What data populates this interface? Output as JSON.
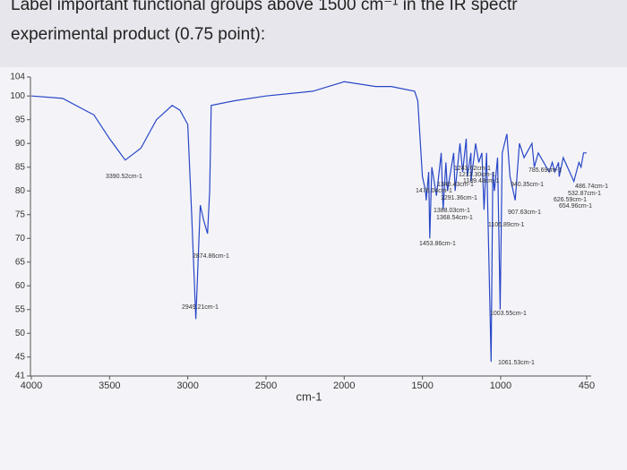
{
  "header": {
    "line1": "Label important functional groups above 1500 cm⁻¹ in the IR spectr",
    "line2": "experimental product (0.75 point):"
  },
  "chart_data": {
    "type": "line",
    "xlabel": "cm-1",
    "color": "#2746c8",
    "xlim": [
      4000,
      450
    ],
    "xticks": [
      4000,
      3500,
      3000,
      2500,
      2000,
      1500,
      1000,
      450
    ],
    "ylim": [
      41,
      104
    ],
    "yticks": [
      41,
      45,
      50,
      55,
      60,
      65,
      70,
      75,
      80,
      85,
      90,
      95,
      100,
      104
    ],
    "x": [
      4000,
      3800,
      3600,
      3500,
      3400,
      3300,
      3200,
      3100,
      3050,
      3000,
      2975,
      2949,
      2940,
      2920,
      2900,
      2874,
      2860,
      2850,
      2700,
      2500,
      2200,
      2100,
      2000,
      1800,
      1700,
      1550,
      1530,
      1500,
      1480,
      1476,
      1460,
      1453,
      1440,
      1410,
      1380,
      1368,
      1350,
      1340,
      1300,
      1291,
      1260,
      1243,
      1220,
      1213,
      1190,
      1189,
      1160,
      1140,
      1120,
      1106,
      1090,
      1061,
      1050,
      1040,
      1020,
      1003,
      990,
      960,
      940,
      907,
      880,
      850,
      800,
      785,
      760,
      690,
      670,
      654,
      630,
      626,
      600,
      532,
      500,
      486,
      470,
      450
    ],
    "values": [
      100,
      99.5,
      96,
      91,
      86.5,
      89,
      95,
      98,
      97,
      94,
      75,
      53,
      60,
      77,
      74,
      71,
      80,
      98,
      99,
      100,
      101,
      102,
      103,
      102,
      102,
      101,
      99,
      83,
      80,
      78,
      84,
      70,
      85,
      79,
      88,
      76,
      86,
      80,
      88,
      80,
      90,
      84,
      91,
      83,
      88,
      82,
      90,
      86,
      88,
      76,
      88,
      44,
      84,
      80,
      87,
      55,
      88,
      92,
      83,
      78,
      90,
      87,
      90,
      85,
      88,
      84,
      86,
      84,
      86,
      83,
      87,
      82,
      86,
      85,
      88,
      88
    ],
    "annotations": [
      "3390.52cm-1",
      "2874.86cm-1",
      "2949.21cm-1",
      "1476.04cm-1",
      "1453.86cm-1",
      "1243.62cm-1",
      "1213.30cm-1",
      "1189.48cm-1",
      "1340.43cm-1",
      "1291.36cm-1",
      "1388.03cm-1",
      "1368.54cm-1",
      "1106.89cm-1",
      "1003.55cm-1",
      "1061.53cm-1",
      "940.35cm-1",
      "907.63cm-1",
      "486.74cm-1",
      "532.87cm-1",
      "626.59cm-1",
      "654.96cm-1",
      "785.69cm-1"
    ]
  }
}
